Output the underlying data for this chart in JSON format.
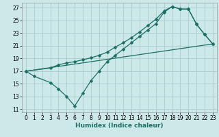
{
  "xlabel": "Humidex (Indice chaleur)",
  "bg_color": "#cce8e8",
  "grid_color": "#aacccc",
  "line_color": "#1a6e64",
  "xlim": [
    -0.5,
    23.5
  ],
  "ylim": [
    10.5,
    27.8
  ],
  "xticks": [
    0,
    1,
    2,
    3,
    4,
    5,
    6,
    7,
    8,
    9,
    10,
    11,
    12,
    13,
    14,
    15,
    16,
    17,
    18,
    19,
    20,
    21,
    22,
    23
  ],
  "yticks": [
    11,
    13,
    15,
    17,
    19,
    21,
    23,
    25,
    27
  ],
  "line1_x": [
    0,
    1,
    3,
    4,
    5,
    6,
    7,
    8,
    9,
    10,
    11,
    12,
    13,
    14,
    15,
    16,
    17,
    18,
    19,
    20,
    21,
    22,
    23
  ],
  "line1_y": [
    17,
    16.2,
    15.2,
    14.2,
    13.0,
    11.5,
    13.5,
    15.5,
    17.0,
    18.5,
    19.5,
    20.5,
    21.5,
    22.5,
    23.5,
    24.5,
    26.3,
    27.2,
    26.8,
    26.8,
    24.4,
    22.8,
    21.3
  ],
  "line2_x": [
    0,
    3,
    4,
    5,
    6,
    7,
    8,
    9,
    10,
    11,
    12,
    13,
    14,
    15,
    16,
    17,
    18,
    19,
    20,
    21,
    22,
    23
  ],
  "line2_y": [
    17,
    17.5,
    18.0,
    18.3,
    18.5,
    18.8,
    19.1,
    19.5,
    20.0,
    20.8,
    21.5,
    22.3,
    23.2,
    24.2,
    25.2,
    26.5,
    27.2,
    26.8,
    26.8,
    24.4,
    22.8,
    21.3
  ],
  "line3_x": [
    0,
    23
  ],
  "line3_y": [
    17,
    21.3
  ],
  "marker": "D",
  "markersize": 2.5,
  "linewidth": 0.9,
  "tick_fontsize": 5.5,
  "xlabel_fontsize": 6.5
}
